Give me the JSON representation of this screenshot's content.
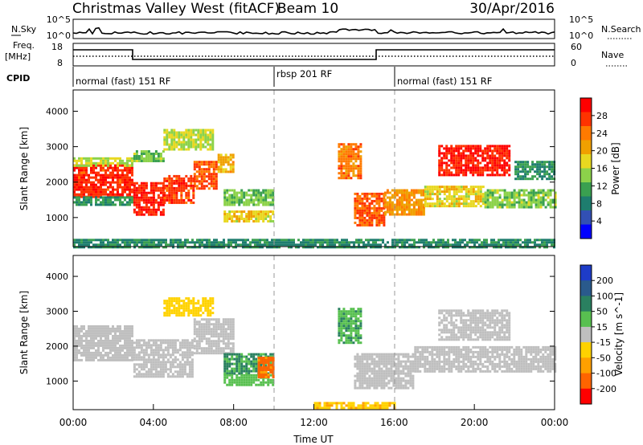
{
  "header": {
    "station": "Christmas Valley West (fitACF)",
    "beam": "Beam 10",
    "date": "30/Apr/2016"
  },
  "noise_panel": {
    "left_label": "N.Sky",
    "right_label": "N.Search",
    "left_ticks": [
      "10^5",
      "10^0"
    ],
    "right_ticks": [
      "10^5",
      "10^0"
    ]
  },
  "freq_panel": {
    "left_label_1": "Freq.",
    "left_label_2": "[MHz]",
    "right_label": "Nave",
    "left_ticks": [
      "18",
      "8"
    ],
    "right_ticks": [
      "60",
      "0"
    ]
  },
  "cpid": {
    "label": "CPID",
    "segments": [
      {
        "start": 0,
        "end": 10,
        "text": "normal (fast) 151 RF"
      },
      {
        "start": 10,
        "end": 16,
        "text": "rbsp 201 RF"
      },
      {
        "start": 16,
        "end": 24,
        "text": "normal (fast) 151 RF"
      }
    ]
  },
  "power_colorbar": {
    "title": "Power [dB]",
    "ticks": [
      "28",
      "24",
      "20",
      "16",
      "12",
      "8",
      "4"
    ],
    "colors": [
      "#ff0000",
      "#ff3300",
      "#ff7a00",
      "#f0a000",
      "#e8d820",
      "#8cd24a",
      "#3aa050",
      "#1e7d6e",
      "#3250b4",
      "#0000ff"
    ]
  },
  "velocity_colorbar": {
    "title": "Velocity [m s^-1]",
    "ticks": [
      "200",
      "100",
      "50",
      "15",
      "-15",
      "-50",
      "-100",
      "-200"
    ],
    "colors": [
      "#1e3cc8",
      "#2a5a8c",
      "#2a8060",
      "#58c050",
      "#bfbfbf",
      "#ffd200",
      "#ffa000",
      "#ff6400",
      "#ff0000"
    ]
  },
  "axes": {
    "ylabel": "Slant Range [km]",
    "xlabel": "Time UT",
    "yticks": [
      "4000",
      "3000",
      "2000",
      "1000"
    ],
    "xticks": [
      "00:00",
      "04:00",
      "08:00",
      "12:00",
      "16:00",
      "20:00",
      "00:00"
    ]
  },
  "chart_data": [
    {
      "type": "heatmap",
      "title": "",
      "quantity": "Power [dB]",
      "xlabel": "",
      "ylabel": "Slant Range [km]",
      "xlim": [
        0,
        24
      ],
      "ylim": [
        180,
        4600
      ],
      "clim": [
        0,
        32
      ],
      "x_units": "hours UT",
      "blobs": [
        {
          "t0": 0.0,
          "t1": 3.0,
          "r0": 1600,
          "r1": 2500,
          "v": 28
        },
        {
          "t0": 0.0,
          "t1": 3.0,
          "r0": 2450,
          "r1": 2700,
          "v": 16
        },
        {
          "t0": 0.0,
          "t1": 3.0,
          "r0": 1350,
          "r1": 1600,
          "v": 10
        },
        {
          "t0": 3.0,
          "t1": 4.5,
          "r0": 1100,
          "r1": 2000,
          "v": 29
        },
        {
          "t0": 4.5,
          "t1": 6.0,
          "r0": 1400,
          "r1": 2200,
          "v": 27
        },
        {
          "t0": 6.0,
          "t1": 7.2,
          "r0": 1800,
          "r1": 2600,
          "v": 26
        },
        {
          "t0": 7.2,
          "t1": 8.0,
          "r0": 2300,
          "r1": 2800,
          "v": 20
        },
        {
          "t0": 3.0,
          "t1": 4.5,
          "r0": 2600,
          "r1": 2900,
          "v": 14
        },
        {
          "t0": 4.5,
          "t1": 7.0,
          "r0": 2900,
          "r1": 3500,
          "v": 16
        },
        {
          "t0": 7.5,
          "t1": 10.0,
          "r0": 1350,
          "r1": 1800,
          "v": 13
        },
        {
          "t0": 7.5,
          "t1": 10.0,
          "r0": 900,
          "r1": 1200,
          "v": 18
        },
        {
          "t0": 13.2,
          "t1": 14.3,
          "r0": 2100,
          "r1": 3100,
          "v": 24
        },
        {
          "t0": 14.0,
          "t1": 15.5,
          "r0": 800,
          "r1": 1700,
          "v": 26
        },
        {
          "t0": 15.5,
          "t1": 17.5,
          "r0": 1100,
          "r1": 1800,
          "v": 22
        },
        {
          "t0": 17.5,
          "t1": 20.5,
          "r0": 1300,
          "r1": 1900,
          "v": 18
        },
        {
          "t0": 18.2,
          "t1": 21.8,
          "r0": 2200,
          "r1": 3050,
          "v": 29
        },
        {
          "t0": 20.5,
          "t1": 24.0,
          "r0": 1300,
          "r1": 1800,
          "v": 14
        },
        {
          "t0": 22.0,
          "t1": 24.0,
          "r0": 2100,
          "r1": 2600,
          "v": 10
        },
        {
          "t0": 0.0,
          "t1": 24.0,
          "r0": 180,
          "r1": 400,
          "v": 9
        }
      ]
    },
    {
      "type": "heatmap",
      "title": "",
      "quantity": "Velocity [m s^-1]",
      "xlabel": "Time UT",
      "ylabel": "Slant Range [km]",
      "xlim": [
        0,
        24
      ],
      "ylim": [
        180,
        4600
      ],
      "clim": [
        -200,
        200
      ],
      "x_units": "hours UT",
      "blobs": [
        {
          "t0": 0.0,
          "t1": 3.0,
          "r0": 1600,
          "r1": 2600,
          "v": 0
        },
        {
          "t0": 3.0,
          "t1": 6.0,
          "r0": 1100,
          "r1": 2200,
          "v": 0
        },
        {
          "t0": 6.0,
          "t1": 8.0,
          "r0": 1800,
          "r1": 2800,
          "v": -5
        },
        {
          "t0": 4.5,
          "t1": 7.0,
          "r0": 2900,
          "r1": 3400,
          "v": -40
        },
        {
          "t0": 7.5,
          "t1": 10.0,
          "r0": 1200,
          "r1": 1800,
          "v": 70
        },
        {
          "t0": 7.5,
          "t1": 10.0,
          "r0": 900,
          "r1": 1200,
          "v": 40
        },
        {
          "t0": 9.2,
          "t1": 10.0,
          "r0": 1100,
          "r1": 1700,
          "v": -120
        },
        {
          "t0": 13.2,
          "t1": 14.3,
          "r0": 2100,
          "r1": 3100,
          "v": 60
        },
        {
          "t0": 14.0,
          "t1": 17.0,
          "r0": 800,
          "r1": 1800,
          "v": 0
        },
        {
          "t0": 17.0,
          "t1": 24.0,
          "r0": 1300,
          "r1": 2000,
          "v": 0
        },
        {
          "t0": 18.2,
          "t1": 21.8,
          "r0": 2200,
          "r1": 3050,
          "v": 5
        },
        {
          "t0": 12.0,
          "t1": 16.0,
          "r0": 200,
          "r1": 400,
          "v": -60
        }
      ]
    }
  ]
}
